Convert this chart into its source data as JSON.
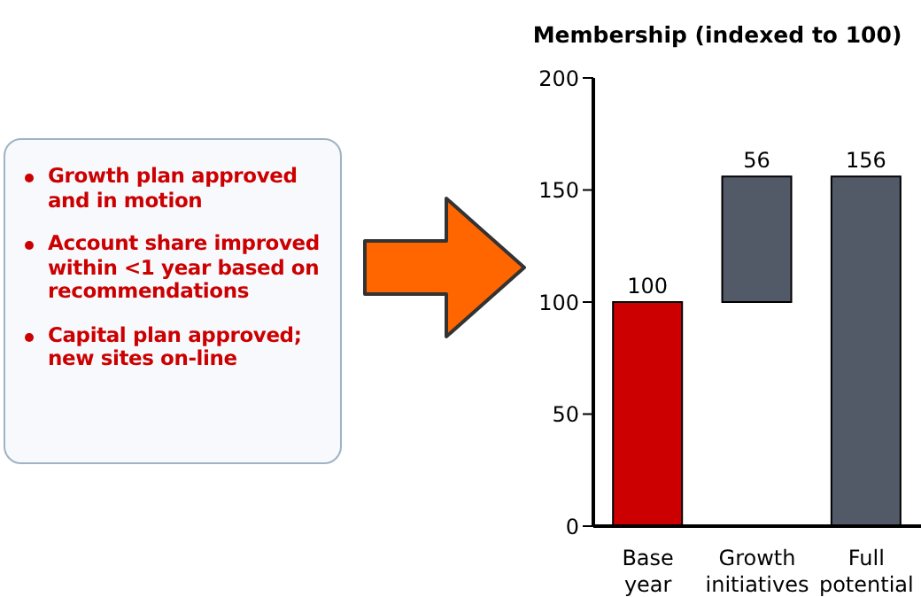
{
  "chart_data": [
    {
      "type": "other",
      "annotations": [
        "Growth plan approved and in motion",
        "Account share improved within <1 year based on recommendations",
        "Capital plan approved; new sites on-line"
      ]
    },
    {
      "type": "bar",
      "title": "Membership (indexed to 100)",
      "categories": [
        "Base year",
        "Growth initiatives",
        "Full potential"
      ],
      "values": [
        100,
        56,
        156
      ],
      "base": [
        0,
        100,
        0
      ],
      "colors": [
        "#cc0000",
        "#525a68",
        "#525a68"
      ],
      "ylim": [
        0,
        200
      ],
      "yticks": [
        0,
        50,
        100,
        150,
        200
      ],
      "data_labels": true,
      "grid": false,
      "legend": false
    }
  ]
}
